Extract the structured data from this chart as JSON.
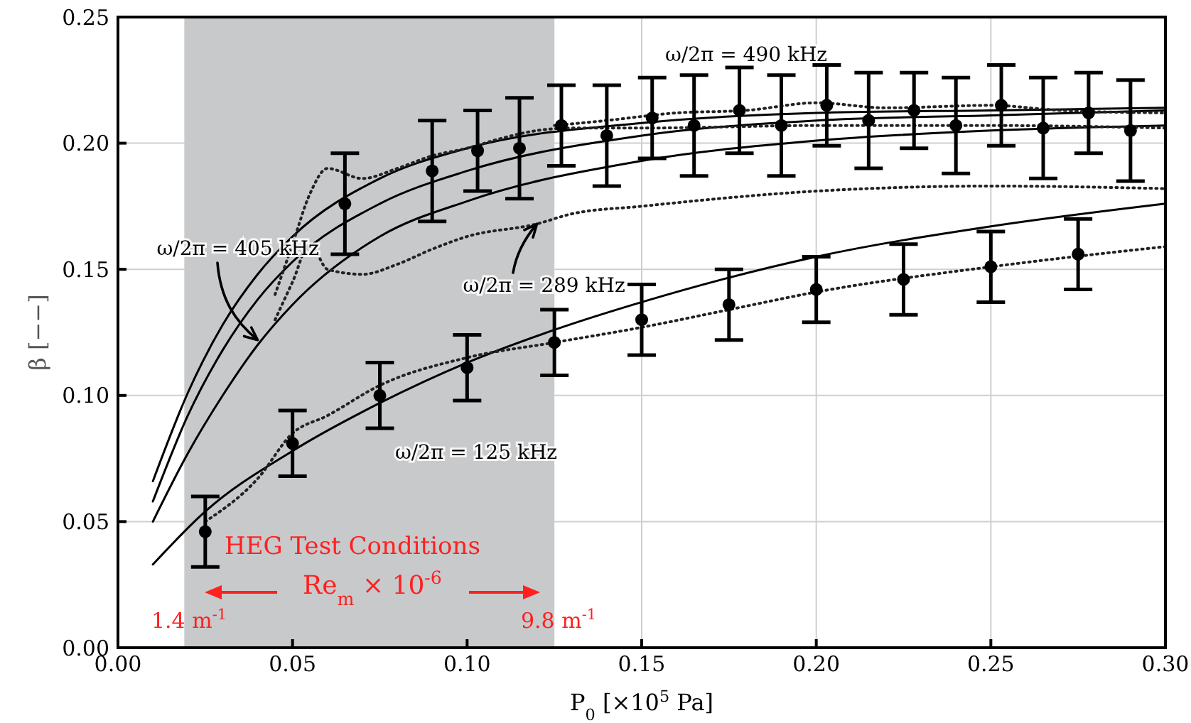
{
  "chart_data": {
    "type": "scatter",
    "xlabel": "P$_{0}$ [×10$^{5}$ Pa]",
    "ylabel": "β [−−]",
    "xlim": [
      0,
      0.3
    ],
    "ylim": [
      0,
      0.25
    ],
    "xticks": [
      {
        "value": 0,
        "label": "0.00"
      },
      {
        "value": 0.05,
        "label": "0.05"
      },
      {
        "value": 0.1,
        "label": "0.10"
      },
      {
        "value": 0.15,
        "label": "0.15"
      },
      {
        "value": 0.2,
        "label": "0.20"
      },
      {
        "value": 0.25,
        "label": "0.25"
      },
      {
        "value": 0.3,
        "label": "0.30"
      }
    ],
    "yticks": [
      {
        "value": 0,
        "label": "0.00"
      },
      {
        "value": 0.05,
        "label": "0.05"
      },
      {
        "value": 0.1,
        "label": "0.10"
      },
      {
        "value": 0.15,
        "label": "0.15"
      },
      {
        "value": 0.2,
        "label": "0.20"
      },
      {
        "value": 0.25,
        "label": "0.25"
      }
    ],
    "grid": true,
    "bands": [
      {
        "axis": "x",
        "from": 0.019,
        "to": 0.125,
        "color": "#c8c9cb"
      }
    ],
    "series": [
      {
        "type": "line",
        "color": "#000000",
        "line_style": "solid",
        "marker": "none",
        "x": [
          0.01,
          0.02,
          0.03,
          0.04,
          0.05,
          0.075,
          0.1,
          0.15,
          0.2,
          0.25,
          0.3
        ],
        "values": [
          0.066,
          0.101,
          0.128,
          0.148,
          0.163,
          0.186,
          0.198,
          0.208,
          0.212,
          0.213,
          0.214
        ]
      },
      {
        "type": "line",
        "color": "#000000",
        "line_style": "solid",
        "marker": "none",
        "x": [
          0.01,
          0.02,
          0.03,
          0.04,
          0.05,
          0.075,
          0.1,
          0.15,
          0.2,
          0.25,
          0.3
        ],
        "values": [
          0.058,
          0.092,
          0.118,
          0.138,
          0.153,
          0.176,
          0.189,
          0.203,
          0.209,
          0.211,
          0.213
        ]
      },
      {
        "type": "line",
        "color": "#000000",
        "line_style": "solid",
        "marker": "none",
        "x": [
          0.01,
          0.02,
          0.03,
          0.04,
          0.05,
          0.075,
          0.1,
          0.15,
          0.2,
          0.25,
          0.3
        ],
        "values": [
          0.05,
          0.077,
          0.1,
          0.12,
          0.136,
          0.163,
          0.177,
          0.193,
          0.201,
          0.205,
          0.207
        ]
      },
      {
        "type": "line",
        "color": "#000000",
        "line_style": "solid",
        "marker": "none",
        "x": [
          0.01,
          0.025,
          0.05,
          0.075,
          0.1,
          0.125,
          0.15,
          0.2,
          0.25,
          0.3
        ],
        "values": [
          0.033,
          0.054,
          0.078,
          0.097,
          0.113,
          0.126,
          0.137,
          0.155,
          0.167,
          0.176
        ]
      },
      {
        "type": "line",
        "color": "#222222",
        "line_style": "dotted",
        "marker": "none",
        "x": [
          0.125,
          0.14,
          0.16,
          0.18,
          0.2,
          0.22,
          0.25,
          0.27,
          0.3
        ],
        "values": [
          0.207,
          0.209,
          0.212,
          0.213,
          0.216,
          0.214,
          0.215,
          0.213,
          0.212
        ]
      },
      {
        "type": "line",
        "color": "#222222",
        "line_style": "dotted",
        "marker": "none",
        "x": [
          0.045,
          0.05,
          0.055,
          0.06,
          0.07,
          0.08,
          0.09,
          0.1,
          0.11,
          0.12,
          0.13,
          0.15,
          0.2,
          0.25,
          0.3
        ],
        "values": [
          0.14,
          0.16,
          0.18,
          0.19,
          0.186,
          0.19,
          0.195,
          0.198,
          0.202,
          0.205,
          0.206,
          0.206,
          0.207,
          0.207,
          0.206
        ]
      },
      {
        "type": "line",
        "color": "#222222",
        "line_style": "dotted",
        "marker": "none",
        "x": [
          0.045,
          0.05,
          0.055,
          0.06,
          0.07,
          0.08,
          0.09,
          0.1,
          0.12,
          0.13,
          0.15,
          0.2,
          0.25,
          0.3
        ],
        "values": [
          0.13,
          0.145,
          0.16,
          0.15,
          0.148,
          0.152,
          0.158,
          0.163,
          0.168,
          0.172,
          0.175,
          0.181,
          0.183,
          0.182
        ]
      },
      {
        "type": "line",
        "color": "#222222",
        "line_style": "dotted",
        "marker": "none",
        "x": [
          0.025,
          0.04,
          0.05,
          0.06,
          0.075,
          0.1,
          0.125,
          0.15,
          0.175,
          0.2,
          0.25,
          0.3
        ],
        "values": [
          0.05,
          0.067,
          0.085,
          0.092,
          0.104,
          0.115,
          0.121,
          0.127,
          0.134,
          0.141,
          0.151,
          0.159
        ]
      },
      {
        "color": "#000000",
        "marker": "circle",
        "x": [
          0.065,
          0.09,
          0.103,
          0.115,
          0.127,
          0.14,
          0.153,
          0.165,
          0.178,
          0.19,
          0.203,
          0.215,
          0.228,
          0.24,
          0.253,
          0.265,
          0.278,
          0.29
        ],
        "values": [
          0.176,
          0.189,
          0.197,
          0.198,
          0.207,
          0.203,
          0.21,
          0.207,
          0.213,
          0.207,
          0.215,
          0.209,
          0.213,
          0.207,
          0.215,
          0.206,
          0.212,
          0.205
        ],
        "errors": [
          0.02,
          0.02,
          0.016,
          0.02,
          0.016,
          0.02,
          0.016,
          0.02,
          0.017,
          0.02,
          0.016,
          0.019,
          0.015,
          0.019,
          0.016,
          0.02,
          0.016,
          0.02
        ]
      },
      {
        "color": "#000000",
        "marker": "circle",
        "x": [
          0.025,
          0.05,
          0.075,
          0.1,
          0.125,
          0.15,
          0.175,
          0.2,
          0.225,
          0.25,
          0.275
        ],
        "values": [
          0.046,
          0.081,
          0.1,
          0.111,
          0.121,
          0.13,
          0.136,
          0.142,
          0.146,
          0.151,
          0.156
        ],
        "errors": [
          0.014,
          0.013,
          0.013,
          0.013,
          0.013,
          0.014,
          0.014,
          0.013,
          0.014,
          0.014,
          0.014
        ]
      }
    ],
    "annotations": [
      "ω/2π = 490 kHz",
      {
        "text": "ω/2π = 405 kHz",
        "x": 0.04,
        "y": 0.122
      },
      {
        "text": "ω/2π = 289 kHz",
        "x": 0.12,
        "y": 0.168
      },
      "ω/2π = 125 kHz",
      "HEG Test Conditions",
      "Re$_{m}$ × 10$^{-6}$",
      "1.4 m$^{-1}$",
      "9.8 m$^{-1}$"
    ]
  }
}
